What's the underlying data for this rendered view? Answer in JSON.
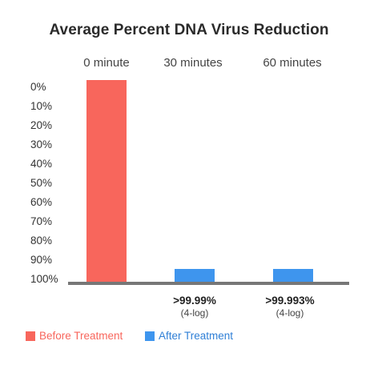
{
  "chart_data": {
    "type": "bar",
    "title": "Average Percent DNA Virus Reduction",
    "categories": [
      "0 minute",
      "30 minutes",
      "60 minutes"
    ],
    "y_tick_labels": [
      "0%",
      "10%",
      "20%",
      "30%",
      "40%",
      "50%",
      "60%",
      "70%",
      "80%",
      "90%",
      "100%"
    ],
    "ylim": [
      0,
      100
    ],
    "y_inverted": true,
    "series": [
      {
        "name": "Before Treatment",
        "color": "#f8665c",
        "values": [
          100,
          null,
          null
        ]
      },
      {
        "name": "After Treatment",
        "color": "#3e95ee",
        "values": [
          null,
          99.99,
          99.993
        ]
      }
    ],
    "bar_labels": [
      {
        "category": "30 minutes",
        "main": ">99.99%",
        "sub": "(4-log)"
      },
      {
        "category": "60 minutes",
        "main": ">99.993%",
        "sub": "(4-log)"
      }
    ],
    "legend_position": "bottom-left",
    "grid": false
  }
}
